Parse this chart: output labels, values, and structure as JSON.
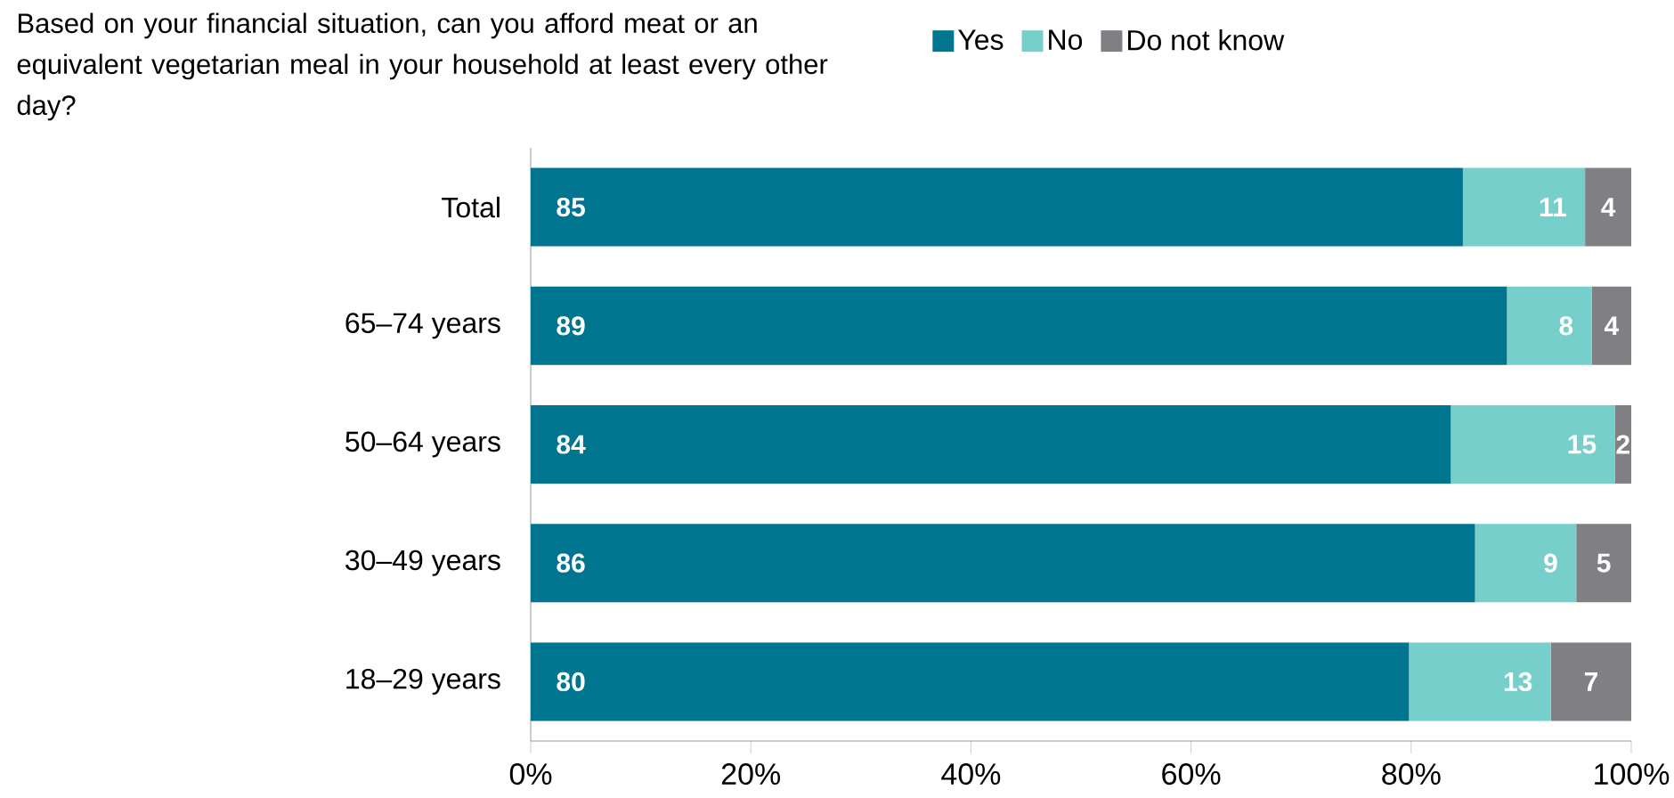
{
  "chart_data": {
    "type": "bar",
    "orientation": "horizontal",
    "stacked": true,
    "title": "Based on your financial situation, can you afford meat or an equivalent vegetarian meal in your household at least every other day?",
    "categories": [
      "Total",
      "65–74 years",
      "50–64 years",
      "30–49 years",
      "18–29 years"
    ],
    "series": [
      {
        "name": "Yes",
        "color": "#00758f",
        "values": [
          84.7,
          88.7,
          83.6,
          85.8,
          79.8
        ],
        "value_labels": [
          "85",
          "89",
          "84",
          "86",
          "80"
        ]
      },
      {
        "name": "No",
        "color": "#76cfca",
        "values": [
          11.1,
          7.7,
          14.9,
          9.2,
          12.9
        ],
        "value_labels": [
          "11",
          "8",
          "15",
          "9",
          "13"
        ]
      },
      {
        "name": "Do not know",
        "color": "#7f7f84",
        "values": [
          4.2,
          3.6,
          1.5,
          5.0,
          7.3
        ],
        "value_labels": [
          "4",
          "4",
          "2",
          "5",
          "7"
        ]
      }
    ],
    "xlim": [
      0,
      100
    ],
    "xticks": [
      {
        "value": 0,
        "label": "0%"
      },
      {
        "value": 20,
        "label": "20%"
      },
      {
        "value": 40,
        "label": "40%"
      },
      {
        "value": 60,
        "label": "60%"
      },
      {
        "value": 80,
        "label": "80%"
      },
      {
        "value": 100,
        "label": "100%"
      }
    ],
    "grid": false,
    "legend": "top"
  }
}
